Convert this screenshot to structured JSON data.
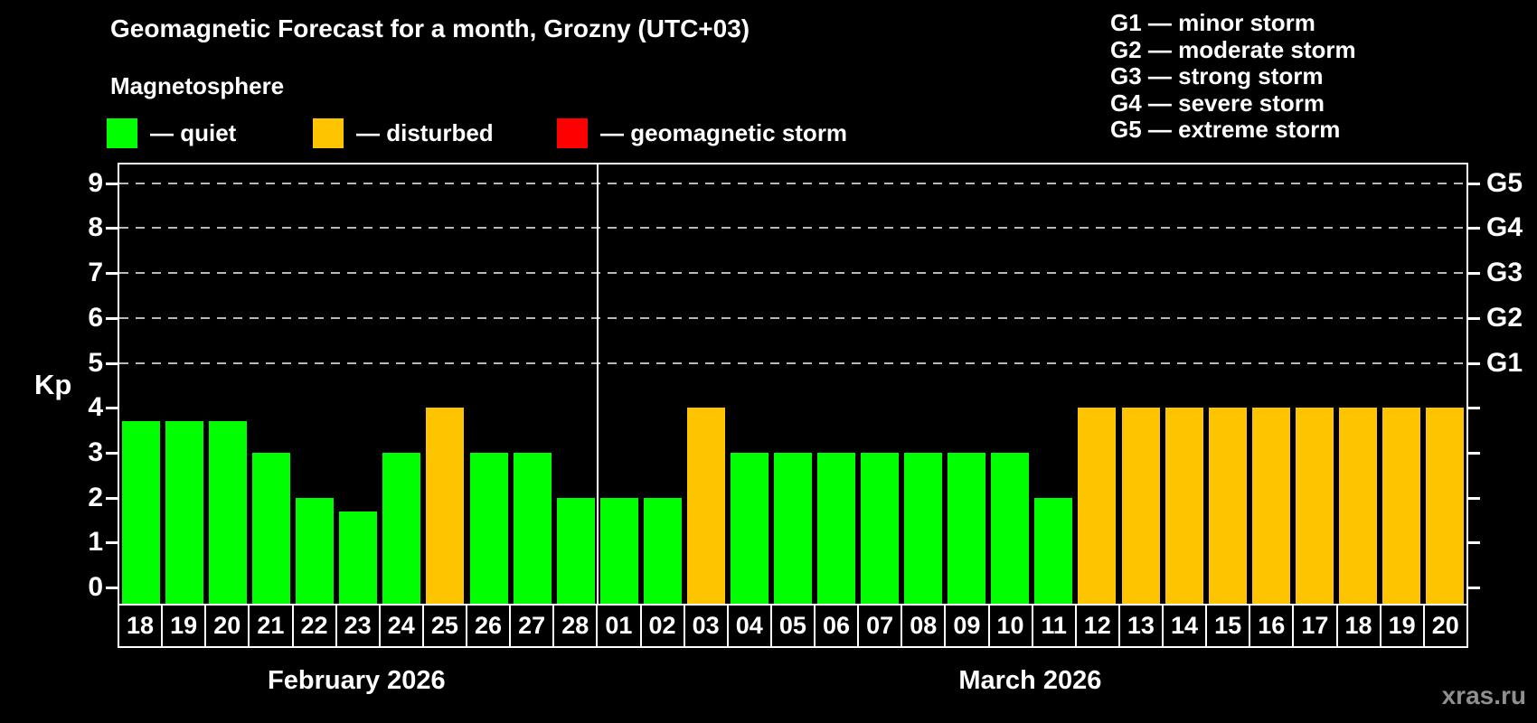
{
  "title": "Geomagnetic Forecast for a month, Grozny (UTC+03)",
  "subtitle": "Magnetosphere",
  "legend": {
    "quiet": "— quiet",
    "disturbed": "— disturbed",
    "storm": "— geomagnetic storm"
  },
  "g_legend": [
    "G1 — minor storm",
    "G2 — moderate storm",
    "G3 — strong storm",
    "G4 — severe storm",
    "G5 — extreme storm"
  ],
  "colors": {
    "quiet": "#00ff00",
    "disturbed": "#ffc400",
    "storm": "#ff0000",
    "axis": "#ffffff",
    "grid": "#b9b9b9",
    "watermark": "#8f8f8f"
  },
  "watermark": "xras.ru",
  "chart_data": {
    "type": "bar",
    "title": "Geomagnetic Forecast for a month, Grozny (UTC+03)",
    "xlabel": "",
    "ylabel": "Kp",
    "ylim": [
      0,
      9
    ],
    "y_ticks": [
      0,
      1,
      2,
      3,
      4,
      5,
      6,
      7,
      8,
      9
    ],
    "grid": "dashed horizontal gridlines at Kp 5,6,7,8,9",
    "legend_position": "top",
    "right_axis": [
      {
        "label": "G1",
        "kp": 5
      },
      {
        "label": "G2",
        "kp": 6
      },
      {
        "label": "G3",
        "kp": 7
      },
      {
        "label": "G4",
        "kp": 8
      },
      {
        "label": "G5",
        "kp": 9
      }
    ],
    "months": [
      {
        "label": "February 2026",
        "days": [
          "18",
          "19",
          "20",
          "21",
          "22",
          "23",
          "24",
          "25",
          "26",
          "27",
          "28"
        ],
        "values": [
          3.7,
          3.7,
          3.7,
          3.0,
          2.0,
          1.7,
          3.0,
          4.0,
          3.0,
          3.0,
          2.0
        ],
        "status": [
          "quiet",
          "quiet",
          "quiet",
          "quiet",
          "quiet",
          "quiet",
          "quiet",
          "disturbed",
          "quiet",
          "quiet",
          "quiet"
        ]
      },
      {
        "label": "March 2026",
        "days": [
          "01",
          "02",
          "03",
          "04",
          "05",
          "06",
          "07",
          "08",
          "09",
          "10",
          "11",
          "12",
          "13",
          "14",
          "15",
          "16",
          "17",
          "18",
          "19",
          "20"
        ],
        "values": [
          2.0,
          2.0,
          4.0,
          3.0,
          3.0,
          3.0,
          3.0,
          3.0,
          3.0,
          3.0,
          2.0,
          4.0,
          4.0,
          4.0,
          4.0,
          4.0,
          4.0,
          4.0,
          4.0,
          4.0
        ],
        "status": [
          "quiet",
          "quiet",
          "disturbed",
          "quiet",
          "quiet",
          "quiet",
          "quiet",
          "quiet",
          "quiet",
          "quiet",
          "quiet",
          "disturbed",
          "disturbed",
          "disturbed",
          "disturbed",
          "disturbed",
          "disturbed",
          "disturbed",
          "disturbed",
          "disturbed"
        ]
      }
    ]
  }
}
